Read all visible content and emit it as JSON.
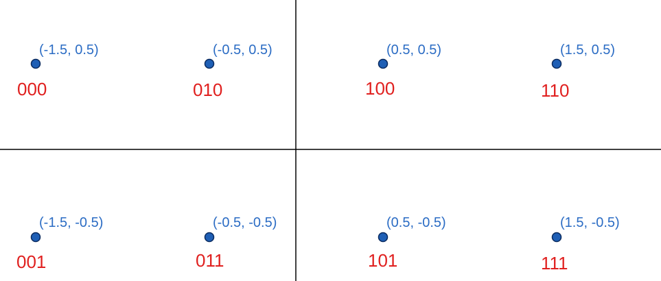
{
  "colors": {
    "axis": "#000000",
    "point_fill": "#1f5fb5",
    "point_stroke": "#0a2a5e",
    "coord_text": "#2b6cc4",
    "bits_text": "#e0201f"
  },
  "points": [
    {
      "coord": "(-1.5, 0.5)",
      "bits": "000"
    },
    {
      "coord": "(-0.5, 0.5)",
      "bits": "010"
    },
    {
      "coord": "(0.5, 0.5)",
      "bits": "100"
    },
    {
      "coord": "(1.5, 0.5)",
      "bits": "110"
    },
    {
      "coord": "(-1.5, -0.5)",
      "bits": "001"
    },
    {
      "coord": "(-0.5, -0.5)",
      "bits": "011"
    },
    {
      "coord": "(0.5, -0.5)",
      "bits": "101"
    },
    {
      "coord": "(1.5, -0.5)",
      "bits": "111"
    }
  ]
}
